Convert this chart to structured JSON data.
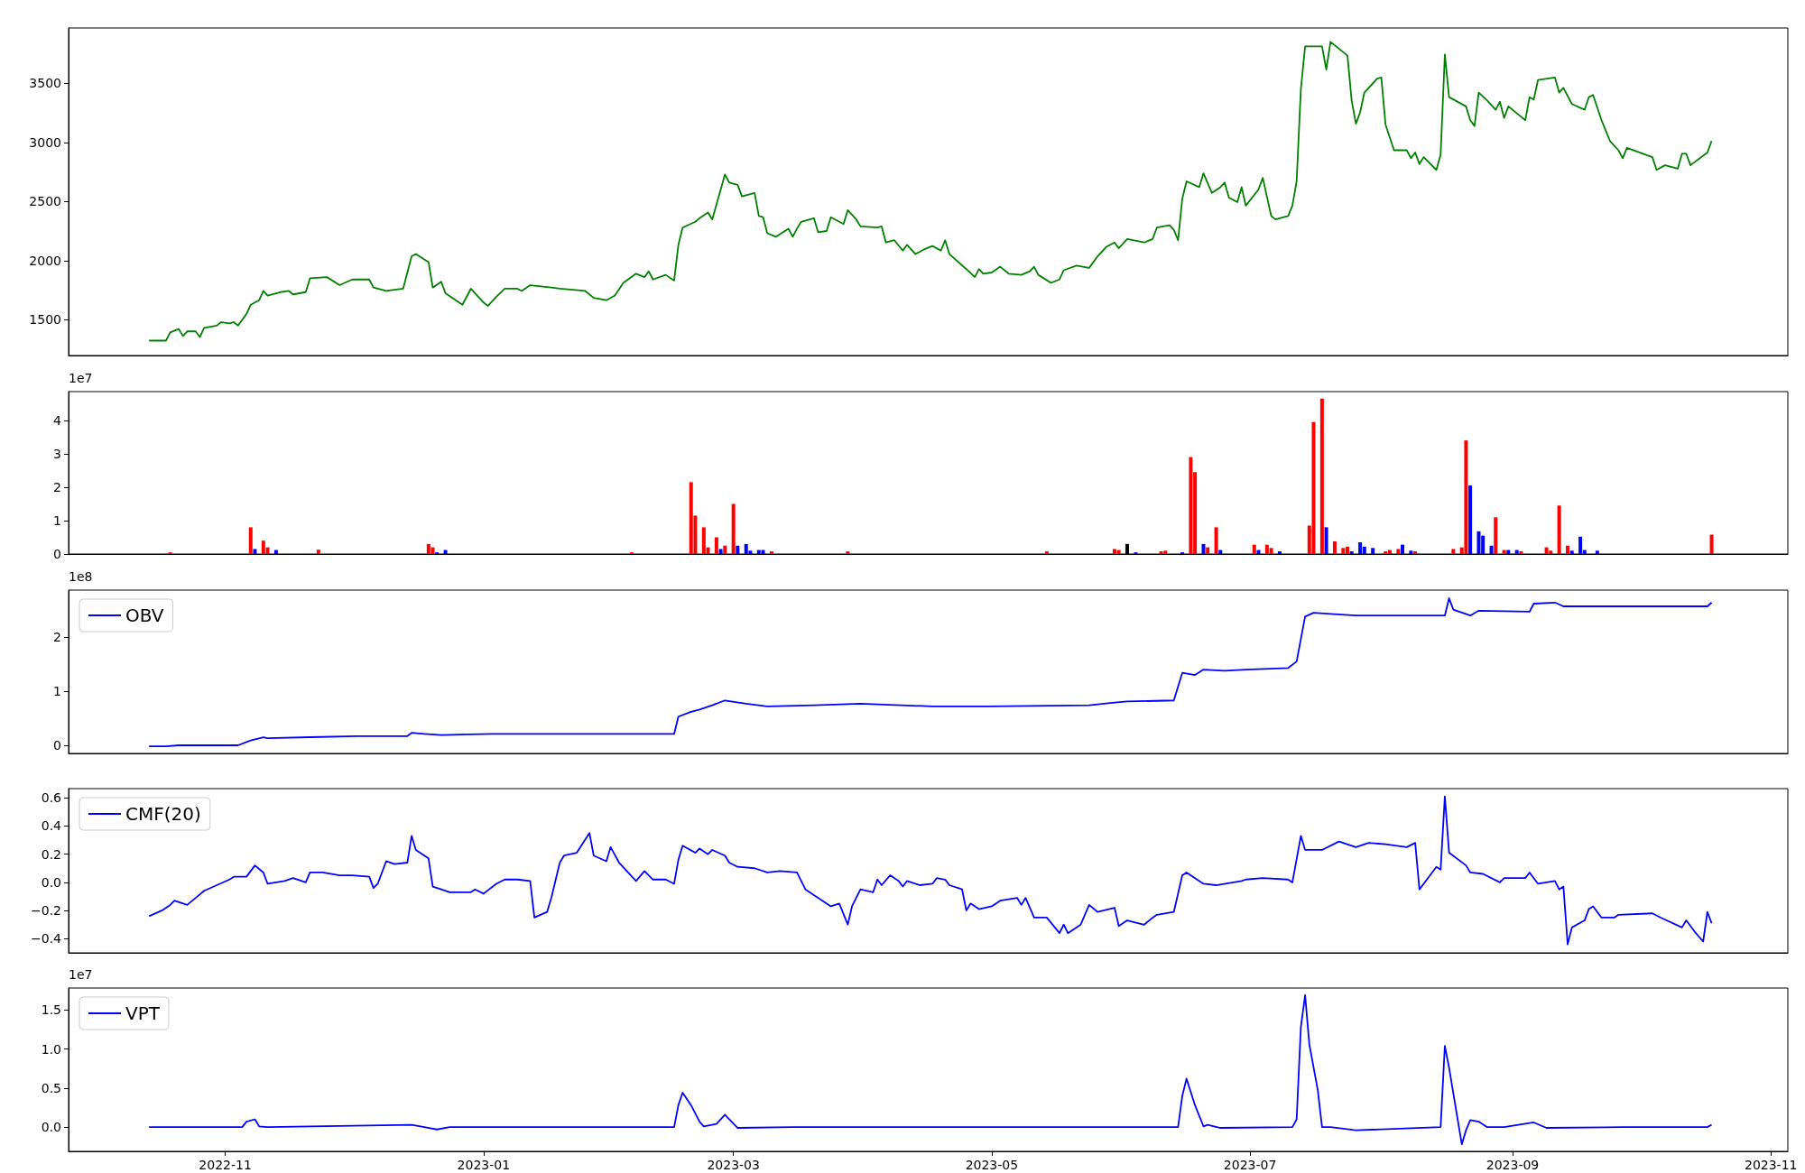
{
  "chart_data": [
    {
      "type": "line",
      "tick_labels": "y",
      "xlim": [
        "2022-09-25",
        "2023-11-05"
      ],
      "ylim": [
        1198,
        3968
      ],
      "yticks": [
        1500,
        2000,
        2500,
        3000,
        3500
      ],
      "x": [
        "2022-10-14",
        "2022-10-18",
        "2022-10-19",
        "2022-10-21",
        "2022-10-22",
        "2022-10-23",
        "2022-10-25",
        "2022-10-26",
        "2022-10-27",
        "2022-10-30",
        "2022-10-31",
        "2022-11-02",
        "2022-11-03",
        "2022-11-04",
        "2022-11-06",
        "2022-11-07",
        "2022-11-09",
        "2022-11-10",
        "2022-11-11",
        "2022-11-14",
        "2022-11-16",
        "2022-11-17",
        "2022-11-20",
        "2022-11-21",
        "2022-11-25",
        "2022-11-28",
        "2022-12-01",
        "2022-12-05",
        "2022-12-06",
        "2022-12-09",
        "2022-12-13",
        "2022-12-15",
        "2022-12-16",
        "2022-12-19",
        "2022-12-20",
        "2022-12-22",
        "2022-12-23",
        "2022-12-27",
        "2022-12-29",
        "2023-01-01",
        "2023-01-02",
        "2023-01-04",
        "2023-01-06",
        "2023-01-09",
        "2023-01-10",
        "2023-01-12",
        "2023-01-17",
        "2023-01-19",
        "2023-01-25",
        "2023-01-27",
        "2023-01-30",
        "2023-02-01",
        "2023-02-03",
        "2023-02-06",
        "2023-02-08",
        "2023-02-09",
        "2023-02-10",
        "2023-02-13",
        "2023-02-15",
        "2023-02-16",
        "2023-02-17",
        "2023-02-20",
        "2023-02-21",
        "2023-02-23",
        "2023-02-24",
        "2023-02-27",
        "2023-02-28",
        "2023-03-02",
        "2023-03-03",
        "2023-03-06",
        "2023-03-07",
        "2023-03-08",
        "2023-03-09",
        "2023-03-11",
        "2023-03-14",
        "2023-03-15",
        "2023-03-16",
        "2023-03-17",
        "2023-03-20",
        "2023-03-21",
        "2023-03-23",
        "2023-03-24",
        "2023-03-27",
        "2023-03-28",
        "2023-03-30",
        "2023-03-31",
        "2023-04-04",
        "2023-04-05",
        "2023-04-06",
        "2023-04-08",
        "2023-04-10",
        "2023-04-11",
        "2023-04-13",
        "2023-04-15",
        "2023-04-17",
        "2023-04-19",
        "2023-04-20",
        "2023-04-21",
        "2023-04-25",
        "2023-04-27",
        "2023-04-28",
        "2023-04-29",
        "2023-05-01",
        "2023-05-03",
        "2023-05-05",
        "2023-05-08",
        "2023-05-10",
        "2023-05-11",
        "2023-05-12",
        "2023-05-15",
        "2023-05-17",
        "2023-05-18",
        "2023-05-21",
        "2023-05-24",
        "2023-05-26",
        "2023-05-28",
        "2023-05-30",
        "2023-05-31",
        "2023-06-02",
        "2023-06-06",
        "2023-06-08",
        "2023-06-09",
        "2023-06-12",
        "2023-06-13",
        "2023-06-14",
        "2023-06-15",
        "2023-06-16",
        "2023-06-19",
        "2023-06-20",
        "2023-06-22",
        "2023-06-24",
        "2023-06-25",
        "2023-06-26",
        "2023-06-28",
        "2023-06-29",
        "2023-06-30",
        "2023-07-03",
        "2023-07-04",
        "2023-07-06",
        "2023-07-07",
        "2023-07-10",
        "2023-07-11",
        "2023-07-12",
        "2023-07-13",
        "2023-07-14",
        "2023-07-18",
        "2023-07-19",
        "2023-07-20",
        "2023-07-24",
        "2023-07-25",
        "2023-07-26",
        "2023-07-27",
        "2023-07-28",
        "2023-07-31",
        "2023-08-01",
        "2023-08-02",
        "2023-08-04",
        "2023-08-07",
        "2023-08-08",
        "2023-08-09",
        "2023-08-10",
        "2023-08-11",
        "2023-08-14",
        "2023-08-15",
        "2023-08-16",
        "2023-08-17",
        "2023-08-21",
        "2023-08-22",
        "2023-08-23",
        "2023-08-24",
        "2023-08-26",
        "2023-08-28",
        "2023-08-29",
        "2023-08-30",
        "2023-08-31",
        "2023-09-04",
        "2023-09-05",
        "2023-09-06",
        "2023-09-07",
        "2023-09-11",
        "2023-09-12",
        "2023-09-13",
        "2023-09-15",
        "2023-09-18",
        "2023-09-19",
        "2023-09-20",
        "2023-09-22",
        "2023-09-24",
        "2023-09-26",
        "2023-09-27",
        "2023-09-28",
        "2023-10-04",
        "2023-10-05",
        "2023-10-07",
        "2023-10-10",
        "2023-10-11",
        "2023-10-12",
        "2023-10-13",
        "2023-10-17",
        "2023-10-18"
      ],
      "series": [
        {
          "color": "#008000",
          "values": [
            1324,
            1324,
            1393,
            1422,
            1363,
            1402,
            1402,
            1354,
            1432,
            1451,
            1480,
            1470,
            1480,
            1451,
            1549,
            1627,
            1666,
            1744,
            1705,
            1734,
            1744,
            1715,
            1734,
            1851,
            1861,
            1793,
            1841,
            1841,
            1773,
            1744,
            1763,
            2037,
            2056,
            1988,
            1773,
            1822,
            1724,
            1627,
            1763,
            1646,
            1617,
            1695,
            1763,
            1763,
            1744,
            1793,
            1773,
            1763,
            1744,
            1685,
            1666,
            1705,
            1812,
            1890,
            1861,
            1910,
            1841,
            1880,
            1832,
            2134,
            2280,
            2329,
            2359,
            2407,
            2349,
            2729,
            2661,
            2641,
            2544,
            2573,
            2378,
            2368,
            2232,
            2202,
            2271,
            2202,
            2271,
            2329,
            2359,
            2241,
            2251,
            2368,
            2310,
            2427,
            2349,
            2290,
            2280,
            2290,
            2154,
            2173,
            2085,
            2134,
            2056,
            2095,
            2124,
            2085,
            2173,
            2056,
            1929,
            1861,
            1929,
            1890,
            1900,
            1949,
            1890,
            1880,
            1910,
            1949,
            1880,
            1812,
            1841,
            1919,
            1958,
            1939,
            2037,
            2115,
            2154,
            2105,
            2183,
            2154,
            2183,
            2280,
            2300,
            2261,
            2173,
            2524,
            2671,
            2622,
            2739,
            2573,
            2622,
            2661,
            2534,
            2495,
            2622,
            2466,
            2602,
            2700,
            2378,
            2349,
            2378,
            2466,
            2671,
            3451,
            3812,
            3812,
            3617,
            3851,
            3734,
            3353,
            3158,
            3256,
            3422,
            3539,
            3549,
            3149,
            2934,
            2934,
            2866,
            2915,
            2817,
            2876,
            2768,
            2895,
            3744,
            3383,
            3305,
            3188,
            3139,
            3422,
            3354,
            3276,
            3344,
            3207,
            3305,
            3188,
            3383,
            3363,
            3529,
            3549,
            3422,
            3461,
            3325,
            3276,
            3383,
            3402,
            3188,
            3012,
            2934,
            2866,
            2954,
            2876,
            2768,
            2807,
            2778,
            2905,
            2905,
            2807,
            2915,
            3012
          ]
        }
      ]
    },
    {
      "type": "bar",
      "tick_labels": "y",
      "annotations": [
        "1e7"
      ],
      "xlim": [
        "2022-09-25",
        "2023-11-05"
      ],
      "ylim": [
        0,
        4.86
      ],
      "yticks": [
        0,
        1,
        2,
        3,
        4
      ],
      "x": [
        "2022-10-19",
        "2022-11-07",
        "2022-11-08",
        "2022-11-10",
        "2022-11-11",
        "2022-11-13",
        "2022-11-23",
        "2022-12-19",
        "2022-12-20",
        "2022-12-21",
        "2022-12-23",
        "2023-02-05",
        "2023-02-19",
        "2023-02-20",
        "2023-02-22",
        "2023-02-23",
        "2023-02-25",
        "2023-02-26",
        "2023-02-27",
        "2023-03-01",
        "2023-03-02",
        "2023-03-04",
        "2023-03-05",
        "2023-03-07",
        "2023-03-08",
        "2023-03-10",
        "2023-03-28",
        "2023-05-14",
        "2023-05-30",
        "2023-05-31",
        "2023-06-02",
        "2023-06-04",
        "2023-06-10",
        "2023-06-11",
        "2023-06-15",
        "2023-06-17",
        "2023-06-18",
        "2023-06-20",
        "2023-06-21",
        "2023-06-23",
        "2023-06-24",
        "2023-07-02",
        "2023-07-03",
        "2023-07-05",
        "2023-07-06",
        "2023-07-08",
        "2023-07-15",
        "2023-07-16",
        "2023-07-18",
        "2023-07-19",
        "2023-07-21",
        "2023-07-23",
        "2023-07-24",
        "2023-07-25",
        "2023-07-27",
        "2023-07-28",
        "2023-07-30",
        "2023-08-02",
        "2023-08-03",
        "2023-08-05",
        "2023-08-06",
        "2023-08-08",
        "2023-08-09",
        "2023-08-18",
        "2023-08-20",
        "2023-08-21",
        "2023-08-22",
        "2023-08-24",
        "2023-08-25",
        "2023-08-27",
        "2023-08-28",
        "2023-08-30",
        "2023-08-31",
        "2023-09-02",
        "2023-09-03",
        "2023-09-09",
        "2023-09-10",
        "2023-09-12",
        "2023-09-14",
        "2023-09-15",
        "2023-09-17",
        "2023-09-18",
        "2023-09-21",
        "2023-10-18"
      ],
      "series": [
        {
          "values": [
            0.05,
            0.8,
            0.15,
            0.4,
            0.2,
            0.12,
            0.13,
            0.3,
            0.2,
            0.05,
            0.12,
            0.05,
            2.15,
            1.15,
            0.8,
            0.2,
            0.5,
            0.15,
            0.25,
            1.5,
            0.25,
            0.3,
            0.1,
            0.12,
            0.12,
            0.08,
            0.08,
            0.08,
            0.15,
            0.12,
            0.3,
            0.05,
            0.08,
            0.1,
            0.05,
            2.9,
            2.45,
            0.3,
            0.2,
            0.8,
            0.12,
            0.28,
            0.12,
            0.28,
            0.18,
            0.08,
            0.85,
            3.95,
            4.65,
            0.8,
            0.38,
            0.18,
            0.22,
            0.08,
            0.35,
            0.22,
            0.18,
            0.08,
            0.12,
            0.15,
            0.28,
            0.1,
            0.08,
            0.15,
            0.2,
            3.4,
            2.05,
            0.68,
            0.55,
            0.25,
            1.1,
            0.12,
            0.12,
            0.12,
            0.08,
            0.2,
            0.1,
            1.45,
            0.25,
            0.1,
            0.52,
            0.12,
            0.1,
            0.58
          ],
          "colors": [
            "#ff0000",
            "#ff0000",
            "#0000ff",
            "#ff0000",
            "#ff0000",
            "#0000ff",
            "#ff0000",
            "#ff0000",
            "#ff0000",
            "#0000ff",
            "#0000ff",
            "#ff0000",
            "#ff0000",
            "#ff0000",
            "#ff0000",
            "#ff0000",
            "#ff0000",
            "#0000ff",
            "#ff0000",
            "#ff0000",
            "#0000ff",
            "#0000ff",
            "#0000ff",
            "#0000ff",
            "#0000ff",
            "#ff0000",
            "#ff0000",
            "#ff0000",
            "#ff0000",
            "#ff0000",
            "#000000",
            "#0000ff",
            "#ff0000",
            "#ff0000",
            "#0000ff",
            "#ff0000",
            "#ff0000",
            "#0000ff",
            "#ff0000",
            "#ff0000",
            "#0000ff",
            "#ff0000",
            "#0000ff",
            "#ff0000",
            "#ff0000",
            "#0000ff",
            "#ff0000",
            "#ff0000",
            "#ff0000",
            "#0000ff",
            "#ff0000",
            "#ff0000",
            "#ff0000",
            "#0000ff",
            "#0000ff",
            "#0000ff",
            "#0000ff",
            "#ff0000",
            "#ff0000",
            "#ff0000",
            "#0000ff",
            "#0000ff",
            "#ff0000",
            "#ff0000",
            "#ff0000",
            "#ff0000",
            "#0000ff",
            "#0000ff",
            "#0000ff",
            "#0000ff",
            "#ff0000",
            "#ff0000",
            "#0000ff",
            "#0000ff",
            "#ff0000",
            "#ff0000",
            "#ff0000",
            "#ff0000",
            "#ff0000",
            "#0000ff",
            "#0000ff",
            "#0000ff",
            "#0000ff",
            "#ff0000"
          ]
        }
      ]
    },
    {
      "type": "line",
      "tick_labels": "y",
      "legend": "top left",
      "annotations": [
        "1e8"
      ],
      "xlim": [
        "2022-09-25",
        "2023-11-05"
      ],
      "ylim": [
        -0.15,
        2.87
      ],
      "yticks": [
        0,
        1,
        2
      ],
      "x": [
        "2022-10-14",
        "2022-10-18",
        "2022-10-21",
        "2022-11-04",
        "2022-11-07",
        "2022-11-10",
        "2022-11-11",
        "2022-11-21",
        "2022-12-02",
        "2022-12-14",
        "2022-12-15",
        "2022-12-18",
        "2022-12-22",
        "2023-01-03",
        "2023-02-05",
        "2023-02-15",
        "2023-02-16",
        "2023-02-19",
        "2023-02-21",
        "2023-02-24",
        "2023-02-27",
        "2023-03-04",
        "2023-03-09",
        "2023-03-20",
        "2023-03-31",
        "2023-04-17",
        "2023-04-30",
        "2023-05-24",
        "2023-05-30",
        "2023-06-02",
        "2023-06-13",
        "2023-06-15",
        "2023-06-18",
        "2023-06-20",
        "2023-06-25",
        "2023-06-30",
        "2023-07-10",
        "2023-07-12",
        "2023-07-14",
        "2023-07-16",
        "2023-07-20",
        "2023-07-26",
        "2023-08-03",
        "2023-08-16",
        "2023-08-17",
        "2023-08-18",
        "2023-08-22",
        "2023-08-24",
        "2023-09-05",
        "2023-09-06",
        "2023-09-11",
        "2023-09-13",
        "2023-09-27",
        "2023-10-17",
        "2023-10-18"
      ],
      "series": [
        {
          "name": "OBV",
          "color": "#0000ff",
          "values": [
            -0.02,
            -0.02,
            0,
            0,
            0.09,
            0.15,
            0.13,
            0.15,
            0.17,
            0.17,
            0.23,
            0.21,
            0.19,
            0.21,
            0.21,
            0.21,
            0.53,
            0.62,
            0.66,
            0.74,
            0.83,
            0.77,
            0.72,
            0.74,
            0.77,
            0.72,
            0.72,
            0.74,
            0.79,
            0.81,
            0.83,
            1.34,
            1.3,
            1.4,
            1.38,
            1.4,
            1.43,
            1.55,
            2.38,
            2.45,
            2.43,
            2.4,
            2.4,
            2.4,
            2.72,
            2.51,
            2.4,
            2.49,
            2.47,
            2.62,
            2.64,
            2.57,
            2.57,
            2.57,
            2.64
          ]
        }
      ]
    },
    {
      "type": "line",
      "tick_labels": "y",
      "legend": "top left",
      "xlim": [
        "2022-09-25",
        "2023-11-05"
      ],
      "ylim": [
        -0.5,
        0.665
      ],
      "yticks": [
        {
          "value": -0.4,
          "label": "−0.4"
        },
        {
          "value": -0.2,
          "label": "−0.2"
        },
        {
          "value": 0,
          "label": "0.0"
        },
        0.2,
        0.4,
        0.6
      ],
      "x": [
        "2022-10-14",
        "2022-10-17",
        "2022-10-19",
        "2022-10-20",
        "2022-10-23",
        "2022-10-25",
        "2022-10-27",
        "2022-10-30",
        "2022-11-02",
        "2022-11-03",
        "2022-11-06",
        "2022-11-08",
        "2022-11-10",
        "2022-11-11",
        "2022-11-15",
        "2022-11-17",
        "2022-11-20",
        "2022-11-21",
        "2022-11-24",
        "2022-11-28",
        "2022-12-01",
        "2022-12-05",
        "2022-12-06",
        "2022-12-07",
        "2022-12-09",
        "2022-12-11",
        "2022-12-14",
        "2022-12-15",
        "2022-12-16",
        "2022-12-19",
        "2022-12-20",
        "2022-12-22",
        "2022-12-24",
        "2022-12-29",
        "2022-12-30",
        "2023-01-01",
        "2023-01-04",
        "2023-01-06",
        "2023-01-09",
        "2023-01-12",
        "2023-01-13",
        "2023-01-16",
        "2023-01-17",
        "2023-01-19",
        "2023-01-20",
        "2023-01-23",
        "2023-01-26",
        "2023-01-27",
        "2023-01-30",
        "2023-01-31",
        "2023-02-02",
        "2023-02-06",
        "2023-02-08",
        "2023-02-10",
        "2023-02-13",
        "2023-02-15",
        "2023-02-16",
        "2023-02-17",
        "2023-02-20",
        "2023-02-21",
        "2023-02-23",
        "2023-02-24",
        "2023-02-27",
        "2023-02-28",
        "2023-03-02",
        "2023-03-06",
        "2023-03-09",
        "2023-03-12",
        "2023-03-16",
        "2023-03-18",
        "2023-03-22",
        "2023-03-24",
        "2023-03-26",
        "2023-03-28",
        "2023-03-29",
        "2023-03-31",
        "2023-04-03",
        "2023-04-04",
        "2023-04-05",
        "2023-04-07",
        "2023-04-09",
        "2023-04-10",
        "2023-04-11",
        "2023-04-14",
        "2023-04-17",
        "2023-04-18",
        "2023-04-20",
        "2023-04-21",
        "2023-04-24",
        "2023-04-25",
        "2023-04-26",
        "2023-04-28",
        "2023-05-01",
        "2023-05-03",
        "2023-05-07",
        "2023-05-08",
        "2023-05-09",
        "2023-05-11",
        "2023-05-14",
        "2023-05-17",
        "2023-05-18",
        "2023-05-19",
        "2023-05-22",
        "2023-05-24",
        "2023-05-26",
        "2023-05-30",
        "2023-05-31",
        "2023-06-02",
        "2023-06-06",
        "2023-06-08",
        "2023-06-09",
        "2023-06-13",
        "2023-06-15",
        "2023-06-16",
        "2023-06-20",
        "2023-06-23",
        "2023-06-29",
        "2023-06-30",
        "2023-07-04",
        "2023-07-10",
        "2023-07-11",
        "2023-07-13",
        "2023-07-14",
        "2023-07-18",
        "2023-07-22",
        "2023-07-26",
        "2023-07-29",
        "2023-08-02",
        "2023-08-07",
        "2023-08-09",
        "2023-08-10",
        "2023-08-14",
        "2023-08-15",
        "2023-08-16",
        "2023-08-17",
        "2023-08-21",
        "2023-08-22",
        "2023-08-25",
        "2023-08-29",
        "2023-08-30",
        "2023-09-04",
        "2023-09-05",
        "2023-09-07",
        "2023-09-11",
        "2023-09-12",
        "2023-09-13",
        "2023-09-14",
        "2023-09-15",
        "2023-09-18",
        "2023-09-19",
        "2023-09-20",
        "2023-09-22",
        "2023-09-25",
        "2023-09-26",
        "2023-10-04",
        "2023-10-06",
        "2023-10-11",
        "2023-10-12",
        "2023-10-14",
        "2023-10-16",
        "2023-10-17",
        "2023-10-18"
      ],
      "series": [
        {
          "name": "CMF(20)",
          "color": "#0000ff",
          "values": [
            -0.24,
            -0.2,
            -0.16,
            -0.13,
            -0.16,
            -0.11,
            -0.06,
            -0.02,
            0.02,
            0.04,
            0.04,
            0.12,
            0.07,
            -0.01,
            0.01,
            0.03,
            0,
            0.07,
            0.07,
            0.05,
            0.05,
            0.04,
            -0.04,
            -0.01,
            0.15,
            0.13,
            0.14,
            0.33,
            0.23,
            0.17,
            -0.03,
            -0.05,
            -0.07,
            -0.07,
            -0.05,
            -0.08,
            -0.01,
            0.02,
            0.02,
            0.01,
            -0.25,
            -0.21,
            -0.11,
            0.14,
            0.19,
            0.21,
            0.35,
            0.19,
            0.15,
            0.25,
            0.14,
            0.01,
            0.08,
            0.02,
            0.02,
            -0.01,
            0.16,
            0.26,
            0.21,
            0.24,
            0.2,
            0.23,
            0.19,
            0.14,
            0.11,
            0.1,
            0.07,
            0.08,
            0.07,
            -0.05,
            -0.13,
            -0.17,
            -0.15,
            -0.3,
            -0.17,
            -0.05,
            -0.07,
            0.02,
            -0.02,
            0.05,
            0.01,
            -0.03,
            0.01,
            -0.02,
            -0.01,
            0.03,
            0.02,
            -0.02,
            -0.05,
            -0.2,
            -0.15,
            -0.19,
            -0.17,
            -0.13,
            -0.11,
            -0.16,
            -0.11,
            -0.25,
            -0.25,
            -0.36,
            -0.3,
            -0.36,
            -0.3,
            -0.16,
            -0.21,
            -0.18,
            -0.31,
            -0.27,
            -0.3,
            -0.25,
            -0.23,
            -0.21,
            0.05,
            0.07,
            -0.01,
            -0.02,
            0.01,
            0.02,
            0.03,
            0.02,
            0,
            0.33,
            0.23,
            0.23,
            0.29,
            0.25,
            0.28,
            0.27,
            0.25,
            0.28,
            -0.05,
            0.11,
            0.09,
            0.61,
            0.21,
            0.12,
            0.07,
            0.06,
            0,
            0.03,
            0.03,
            0.07,
            -0.01,
            0.01,
            -0.05,
            -0.03,
            -0.44,
            -0.32,
            -0.27,
            -0.19,
            -0.17,
            -0.25,
            -0.25,
            -0.23,
            -0.22,
            -0.25,
            -0.32,
            -0.27,
            -0.35,
            -0.42,
            -0.21,
            -0.29
          ]
        }
      ]
    },
    {
      "type": "line",
      "legend": "top left",
      "annotations": [
        "1e7"
      ],
      "xlim": [
        "2022-09-25",
        "2023-11-05"
      ],
      "xticks": [
        "2022-11",
        "2023-01",
        "2023-03",
        "2023-05",
        "2023-07",
        "2023-09",
        "2023-11"
      ],
      "ylim": [
        -0.31,
        1.78
      ],
      "yticks": [
        {
          "value": 0,
          "label": "0.0"
        },
        {
          "value": 0.5,
          "label": "0.5"
        },
        {
          "value": 1,
          "label": "1.0"
        },
        {
          "value": 1.5,
          "label": "1.5"
        }
      ],
      "x": [
        "2022-10-14",
        "2022-11-05",
        "2022-11-06",
        "2022-11-08",
        "2022-11-09",
        "2022-11-11",
        "2022-11-21",
        "2022-12-15",
        "2022-12-18",
        "2022-12-21",
        "2022-12-24",
        "2023-02-15",
        "2023-02-16",
        "2023-02-17",
        "2023-02-19",
        "2023-02-21",
        "2023-02-22",
        "2023-02-25",
        "2023-02-27",
        "2023-02-28",
        "2023-03-02",
        "2023-03-15",
        "2023-06-14",
        "2023-06-15",
        "2023-06-16",
        "2023-06-18",
        "2023-06-20",
        "2023-06-21",
        "2023-06-24",
        "2023-07-11",
        "2023-07-12",
        "2023-07-13",
        "2023-07-14",
        "2023-07-15",
        "2023-07-17",
        "2023-07-18",
        "2023-07-20",
        "2023-07-26",
        "2023-08-15",
        "2023-08-16",
        "2023-08-17",
        "2023-08-20",
        "2023-08-21",
        "2023-08-22",
        "2023-08-24",
        "2023-08-26",
        "2023-08-30",
        "2023-09-06",
        "2023-09-09",
        "2023-09-27",
        "2023-10-17",
        "2023-10-18"
      ],
      "series": [
        {
          "name": "VPT",
          "color": "#0000ff",
          "values": [
            0,
            0,
            0.07,
            0.1,
            0.01,
            0,
            0.01,
            0.03,
            0,
            -0.03,
            0,
            0,
            0.28,
            0.44,
            0.28,
            0.07,
            0.01,
            0.04,
            0.16,
            0.1,
            -0.01,
            0,
            0,
            0.4,
            0.62,
            0.28,
            0.01,
            0.03,
            -0.01,
            0,
            0.1,
            1.28,
            1.69,
            1.06,
            0.47,
            0,
            0,
            -0.04,
            0,
            1.04,
            0.76,
            -0.22,
            -0.04,
            0.09,
            0.07,
            0,
            0,
            0.06,
            -0.01,
            0,
            0,
            0.03
          ]
        }
      ]
    }
  ]
}
